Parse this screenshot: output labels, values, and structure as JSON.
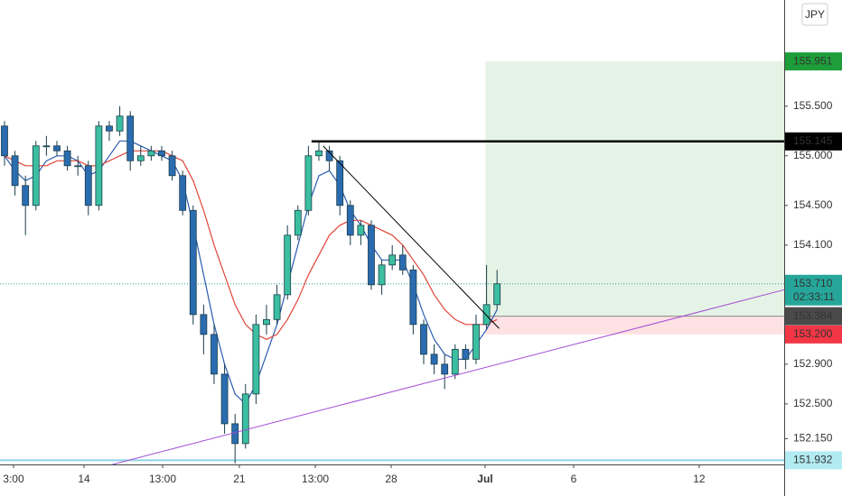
{
  "chart_data": {
    "type": "candlestick",
    "currency": "JPY",
    "countdown": "02:33:11",
    "xlim": [
      -0.43,
      74.4
    ],
    "ylim": [
      151.89,
      156.57
    ],
    "xticks": [
      {
        "value": 0.86,
        "label": "3:00"
      },
      {
        "value": 7.59,
        "label": "14"
      },
      {
        "value": 15.09,
        "label": "13:00"
      },
      {
        "value": 22.41,
        "label": "21"
      },
      {
        "value": 29.66,
        "label": "13:00"
      },
      {
        "value": 36.9,
        "label": "28"
      },
      {
        "value": 45.86,
        "label": "Jul"
      },
      {
        "value": 54.31,
        "label": "6"
      },
      {
        "value": 66.29,
        "label": "12"
      }
    ],
    "yticks": [
      {
        "value": 155.5,
        "label": "155.500"
      },
      {
        "value": 155,
        "label": "155.000"
      },
      {
        "value": 154.5,
        "label": "154.500"
      },
      {
        "value": 154.1,
        "label": "154.100"
      },
      {
        "value": 152.9,
        "label": "152.900"
      },
      {
        "value": 152.5,
        "label": "152.500"
      },
      {
        "value": 152.15,
        "label": "152.150"
      }
    ],
    "up_color": "#3bbfa0",
    "down_color": "#2b6cb0",
    "open": [
      155.3,
      155.0,
      154.7,
      154.5,
      155.1,
      155.1,
      155.05,
      154.9,
      154.9,
      154.5,
      155.3,
      155.25,
      155.4,
      154.95,
      155.0,
      155.05,
      155.0,
      154.8,
      154.45,
      153.4,
      153.2,
      152.8,
      152.3,
      152.1,
      152.6,
      153.3,
      153.35,
      153.6,
      154.2,
      154.45,
      155.0,
      155.05,
      154.95,
      154.5,
      154.2,
      154.3,
      153.7,
      153.9,
      154.0,
      153.85,
      153.3,
      153.0,
      152.9,
      152.8,
      153.05,
      152.95,
      153.3,
      153.5
    ],
    "high": [
      155.35,
      155.05,
      154.8,
      155.15,
      155.2,
      155.15,
      155.1,
      155.0,
      154.95,
      155.35,
      155.35,
      155.5,
      155.45,
      155.1,
      155.1,
      155.1,
      155.05,
      154.85,
      154.5,
      153.5,
      153.3,
      152.9,
      152.4,
      152.7,
      153.4,
      153.5,
      153.7,
      154.3,
      154.5,
      155.1,
      155.15,
      155.1,
      155.0,
      154.55,
      154.35,
      154.35,
      153.95,
      154.1,
      154.1,
      153.9,
      153.35,
      153.1,
      153.0,
      153.1,
      153.1,
      153.4,
      153.9,
      153.85
    ],
    "low": [
      154.9,
      154.6,
      154.2,
      154.45,
      155.0,
      155.0,
      154.85,
      154.8,
      154.4,
      154.45,
      155.15,
      155.2,
      154.85,
      154.9,
      154.95,
      154.95,
      154.75,
      154.4,
      153.3,
      153.0,
      152.7,
      152.2,
      151.9,
      152.05,
      152.5,
      153.2,
      153.3,
      153.55,
      154.15,
      154.4,
      154.95,
      154.85,
      154.4,
      154.1,
      154.1,
      153.65,
      153.6,
      153.85,
      153.8,
      153.2,
      152.9,
      152.8,
      152.65,
      152.75,
      152.85,
      152.9,
      153.25,
      153.45
    ],
    "close": [
      155.0,
      154.7,
      154.5,
      155.1,
      155.1,
      155.05,
      154.9,
      154.9,
      154.5,
      155.3,
      155.25,
      155.4,
      154.95,
      155.0,
      155.05,
      155.0,
      154.8,
      154.45,
      153.4,
      153.2,
      152.8,
      152.3,
      152.1,
      152.6,
      153.3,
      153.35,
      153.6,
      154.2,
      154.45,
      155.0,
      155.05,
      154.95,
      154.5,
      154.2,
      154.3,
      153.7,
      153.9,
      154.0,
      153.85,
      153.3,
      153.0,
      152.9,
      152.8,
      153.05,
      152.95,
      153.3,
      153.5,
      153.71
    ],
    "moving_averages": [
      {
        "color": "#2a5db0",
        "values": [
          155.0,
          154.85,
          154.75,
          154.8,
          154.95,
          155.0,
          155.0,
          154.95,
          154.8,
          154.85,
          155.0,
          155.15,
          155.15,
          155.1,
          155.05,
          155.0,
          154.95,
          154.75,
          154.3,
          153.8,
          153.3,
          152.9,
          152.6,
          152.5,
          152.7,
          153.0,
          153.3,
          153.7,
          154.1,
          154.5,
          154.8,
          154.85,
          154.7,
          154.45,
          154.3,
          154.1,
          153.95,
          153.95,
          153.95,
          153.7,
          153.4,
          153.15,
          153.0,
          152.95,
          152.95,
          153.1,
          153.25,
          153.45
        ]
      },
      {
        "color": "#e0453a",
        "values": [
          155.0,
          154.95,
          154.9,
          154.9,
          154.9,
          154.95,
          154.95,
          154.95,
          154.9,
          154.9,
          154.95,
          155.0,
          155.05,
          155.05,
          155.05,
          155.05,
          155.0,
          154.95,
          154.75,
          154.45,
          154.1,
          153.8,
          153.5,
          153.3,
          153.2,
          153.15,
          153.2,
          153.35,
          153.55,
          153.8,
          154.0,
          154.2,
          154.3,
          154.35,
          154.35,
          154.3,
          154.25,
          154.2,
          154.1,
          153.95,
          153.8,
          153.6,
          153.45,
          153.35,
          153.3,
          153.3,
          153.3,
          153.35
        ]
      }
    ],
    "level": {
      "value": 155.145,
      "from": 29.3,
      "color": "#000000"
    },
    "trendlines": [
      {
        "x": [
          30.4,
          47.2
        ],
        "y": [
          155.1,
          153.26
        ],
        "color": "#000000"
      },
      {
        "x": [
          10.3,
          74.4
        ],
        "y": [
          151.89,
          153.65
        ],
        "color": "#a34bd6"
      }
    ],
    "position": {
      "from": 45.9,
      "entry": 153.384,
      "target": 155.951,
      "stop": {
        "value": 153.2,
        "label": "153.200"
      }
    },
    "support_level": {
      "value": 151.932,
      "color": "#8fd3e8"
    },
    "price_markers": [
      {
        "price": 155.951,
        "color": "#1e9e3a",
        "text_color": "#ffffff"
      },
      {
        "price": 155.145,
        "color": "#000000",
        "text_color": "#ffffff"
      },
      {
        "price": {
          "value": 153.71,
          "label": "153.710"
        },
        "color": "#26a69a",
        "text_color": "#ffffff"
      },
      {
        "price": 153.384,
        "color": "#4a4a4a",
        "text_color": "#ffffff"
      },
      {
        "price": {
          "value": 153.2,
          "label": "153.200"
        },
        "color": "#f23645",
        "text_color": "#ffffff"
      },
      {
        "price": 151.932,
        "color": "#b2ebf2",
        "text_color": "#222222"
      }
    ]
  }
}
